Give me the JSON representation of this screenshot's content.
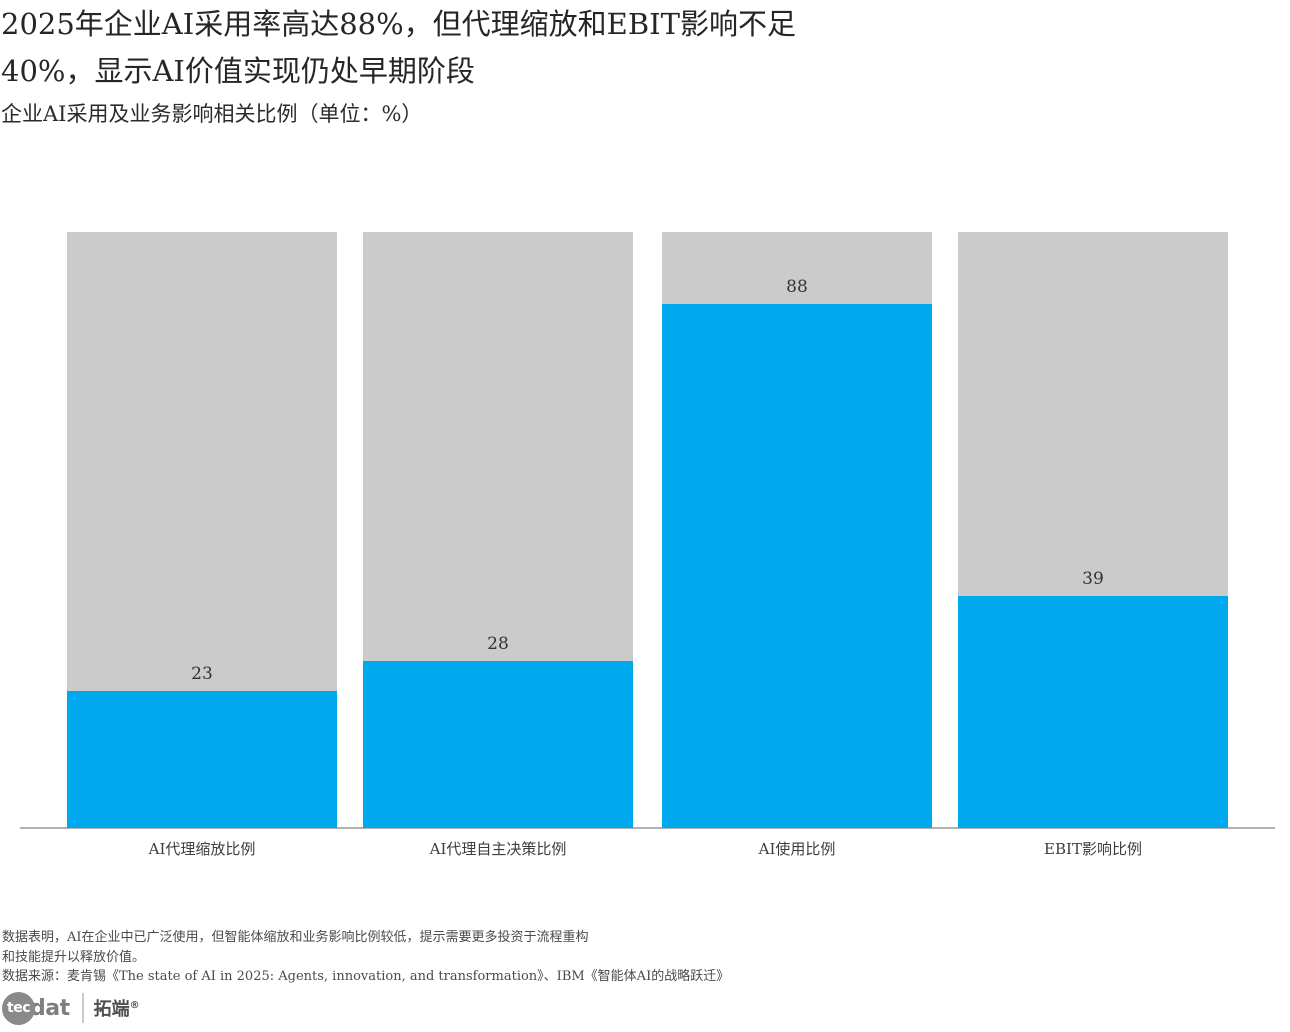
{
  "header": {
    "title_line1": "2025年企业AI采用率高达88%，但代理缩放和EBIT影响不足",
    "title_line2": "40%，显示AI价值实现仍处早期阶段",
    "subtitle": "企业AI采用及业务影响相关比例（单位：%）"
  },
  "chart_data": {
    "type": "bar",
    "title": "2025年企业AI采用率高达88%，但代理缩放和EBIT影响不足40%，显示AI价值实现仍处早期阶段",
    "subtitle": "企业AI采用及业务影响相关比例（单位：%）",
    "categories": [
      "AI代理缩放比例",
      "AI代理自主决策比例",
      "AI使用比例",
      "EBIT影响比例"
    ],
    "values": [
      23,
      28,
      88,
      39
    ],
    "unit": "%",
    "ylim": [
      0,
      100
    ],
    "track_max": 100,
    "grid": false,
    "legend": false,
    "bar_color": "#00a8ee",
    "track_color": "#cbcbcb",
    "axis_line_color": "#b2b2b2"
  },
  "footer": {
    "note_line1": "数据表明，AI在企业中已广泛使用，但智能体缩放和业务影响比例较低，提示需要更多投资于流程重构",
    "note_line2": "和技能提升以释放价值。",
    "source": "数据来源：麦肯锡《The state of AI in 2025: Agents, innovation, and transformation》、IBM《智能体AI的战略跃迁》"
  },
  "logo": {
    "circle_text": "tec",
    "suffix_text": "dat",
    "brand": "拓端",
    "reg_mark": "®"
  }
}
